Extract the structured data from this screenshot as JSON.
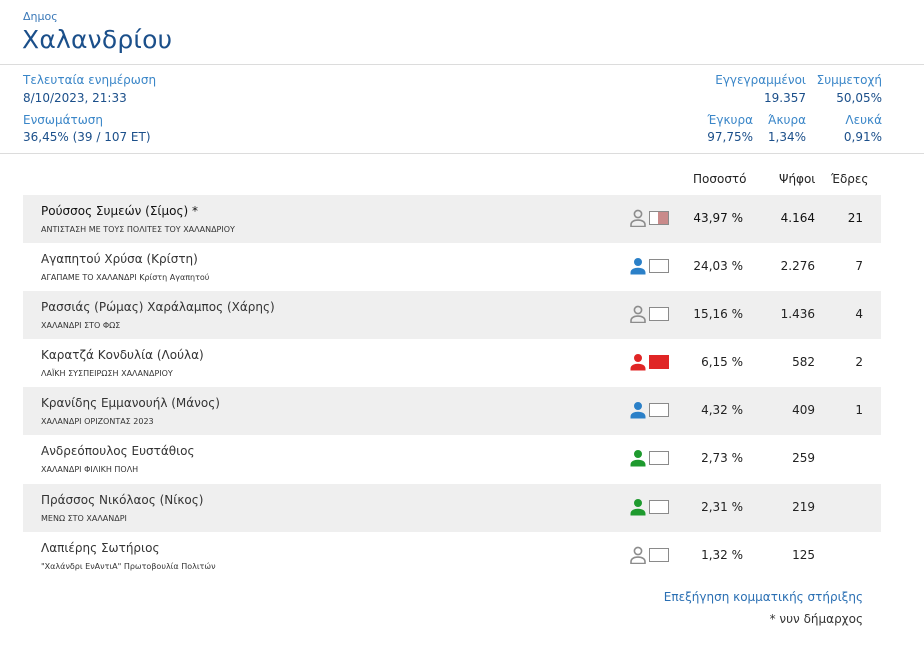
{
  "header": {
    "label": "Δημος",
    "name": "Χαλανδρίου"
  },
  "stats": {
    "updated_label": "Τελευταία ενημέρωση",
    "updated_value": "8/10/2023, 21:33",
    "integration_label": "Ενσωμάτωση",
    "integration_value": "36,45% (39 / 107 ΕΤ)",
    "registered_label": "Εγγεγραμμένοι",
    "registered_value": "19.357",
    "turnout_label": "Συμμετοχή",
    "turnout_value": "50,05%",
    "valid_label": "Έγκυρα",
    "valid_value": "97,75%",
    "invalid_label": "Άκυρα",
    "invalid_value": "1,34%",
    "blank_label": "Λευκά",
    "blank_value": "0,91%"
  },
  "columns": {
    "percent": "Ποσοστό",
    "votes": "Ψήφοι",
    "seats": "Έδρες"
  },
  "candidates": [
    {
      "name": "Ρούσσος Συμεών (Σίμος) *",
      "party": "ΑΝΤΙΣΤΑΣΗ ΜΕ ΤΟΥΣ ΠΟΛΙΤΕΣ ΤΟΥ ΧΑΛΑΝΔΡΙΟΥ",
      "percent": "43,97 %",
      "votes": "4.164",
      "seats": "21",
      "person_color": "#8c8c8c",
      "swatch": "partial",
      "swatch_color": "#c98a8a"
    },
    {
      "name": "Αγαπητού Χρύσα (Κρίστη)",
      "party": "ΑΓΑΠΑΜΕ ΤΟ ΧΑΛΑΝΔΡΙ Κρίστη Αγαπητού",
      "percent": "24,03 %",
      "votes": "2.276",
      "seats": "7",
      "person_color": "#2b80c8",
      "swatch": "empty",
      "swatch_color": "#ffffff"
    },
    {
      "name": "Ρασσιάς (Ρώμας) Χαράλαμπος (Χάρης)",
      "party": "ΧΑΛΑΝΔΡΙ ΣΤΟ ΦΩΣ",
      "percent": "15,16 %",
      "votes": "1.436",
      "seats": "4",
      "person_color": "#8c8c8c",
      "swatch": "empty",
      "swatch_color": "#ffffff"
    },
    {
      "name": "Καρατζά Κονδυλία (Λούλα)",
      "party": "ΛΑΪΚΗ ΣΥΣΠΕΙΡΩΣΗ ΧΑΛΑΝΔΡΙΟΥ",
      "percent": "6,15 %",
      "votes": "582",
      "seats": "2",
      "person_color": "#e02525",
      "swatch": "full",
      "swatch_color": "#e02525"
    },
    {
      "name": "Κρανίδης Εμμανουήλ (Μάνος)",
      "party": "ΧΑΛΑΝΔΡΙ ΟΡΙΖΟΝΤΑΣ 2023",
      "percent": "4,32 %",
      "votes": "409",
      "seats": "1",
      "person_color": "#2b80c8",
      "swatch": "empty",
      "swatch_color": "#ffffff"
    },
    {
      "name": "Ανδρεόπουλος Ευστάθιος",
      "party": "ΧΑΛΑΝΔΡΙ ΦΙΛΙΚΗ ΠΟΛΗ",
      "percent": "2,73 %",
      "votes": "259",
      "seats": "",
      "person_color": "#1e9a2e",
      "swatch": "empty",
      "swatch_color": "#ffffff"
    },
    {
      "name": "Πράσσος Νικόλαος (Νίκος)",
      "party": "ΜΕΝΩ ΣΤΟ ΧΑΛΑΝΔΡΙ",
      "percent": "2,31 %",
      "votes": "219",
      "seats": "",
      "person_color": "#1e9a2e",
      "swatch": "empty",
      "swatch_color": "#ffffff"
    },
    {
      "name": "Λαπιέρης Σωτήριος",
      "party": "\"Χαλάνδρι ΕνΑντιΑ\" Πρωτοβουλία Πολιτών",
      "percent": "1,32 %",
      "votes": "125",
      "seats": "",
      "person_color": "#8c8c8c",
      "swatch": "empty",
      "swatch_color": "#ffffff"
    }
  ],
  "footer": {
    "explain_link": "Επεξήγηση κομματικής στήριξης",
    "note": "* νυν δήμαρχος"
  }
}
